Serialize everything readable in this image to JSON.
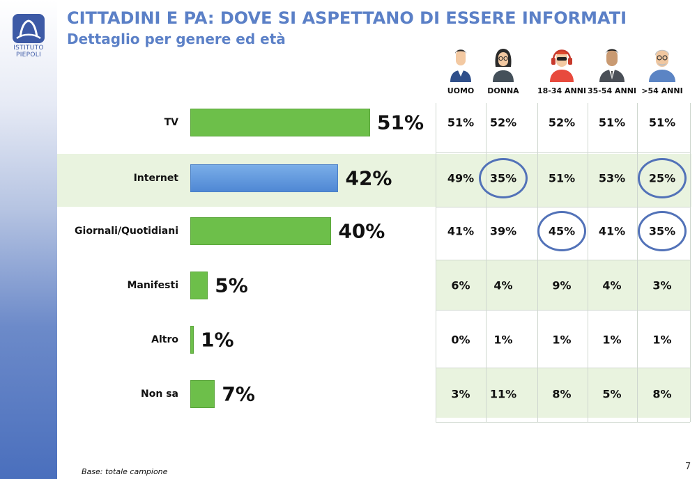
{
  "slide": {
    "title": "CITTADINI E PA: DOVE SI ASPETTANO DI ESSERE INFORMATI",
    "subtitle": "Dettaglio per genere ed età",
    "footnote": "Base: totale campione",
    "page_number": "7"
  },
  "logo": {
    "line1": "ISTITUTO",
    "line2": "PIEPOLI"
  },
  "colors": {
    "title": "#5b80c7",
    "bar_green": "#6dbf4a",
    "bar_blue": "#5a92dc",
    "band": "#e9f3df",
    "circle": "#5272b8"
  },
  "chart_data": {
    "type": "bar",
    "orientation": "horizontal",
    "categories": [
      "TV",
      "Internet",
      "Giornali/Quotidiani",
      "Manifesti",
      "Altro",
      "Non sa"
    ],
    "values": [
      51,
      42,
      40,
      5,
      1,
      7
    ],
    "value_labels": [
      "51%",
      "42%",
      "40%",
      "5%",
      "1%",
      "7%"
    ],
    "highlight_category": "Internet",
    "xlim": [
      0,
      51
    ],
    "grid": false
  },
  "table": {
    "columns": [
      {
        "label": "UOMO",
        "icon": "man-icon"
      },
      {
        "label": "DONNA",
        "icon": "woman-icon"
      },
      {
        "label": "18-34 ANNI",
        "icon": "young-person-headphones-icon"
      },
      {
        "label": "35-54 ANNI",
        "icon": "businessman-icon"
      },
      {
        "label": ">54 ANNI",
        "icon": "senior-man-icon"
      }
    ],
    "rows": [
      {
        "cells": [
          "51%",
          "52%",
          "52%",
          "51%",
          "51%"
        ],
        "circled": []
      },
      {
        "cells": [
          "49%",
          "35%",
          "51%",
          "53%",
          "25%"
        ],
        "circled": [
          1,
          4
        ]
      },
      {
        "cells": [
          "41%",
          "39%",
          "45%",
          "41%",
          "35%"
        ],
        "circled": [
          2,
          4
        ]
      },
      {
        "cells": [
          "6%",
          "4%",
          "9%",
          "4%",
          "3%"
        ],
        "circled": []
      },
      {
        "cells": [
          "0%",
          "1%",
          "1%",
          "1%",
          "1%"
        ],
        "circled": []
      },
      {
        "cells": [
          "3%",
          "11%",
          "8%",
          "5%",
          "8%"
        ],
        "circled": []
      }
    ]
  }
}
